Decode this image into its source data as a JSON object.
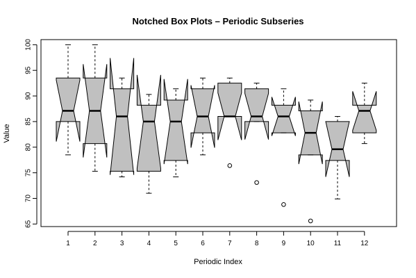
{
  "chart_data": {
    "type": "box",
    "title": "Notched Box Plots – Periodic Subseries",
    "xlabel": "Periodic Index",
    "ylabel": "Value",
    "categories": [
      "1",
      "2",
      "3",
      "4",
      "5",
      "6",
      "7",
      "8",
      "9",
      "10",
      "11",
      "12"
    ],
    "ylim": [
      64.5,
      101
    ],
    "yticks": [
      65,
      70,
      75,
      80,
      85,
      90,
      95,
      100
    ],
    "box_fill": "#c0c0c0",
    "boxes": [
      {
        "min": 78.5,
        "q1": 85.0,
        "median": 87.1,
        "q3": 93.5,
        "max": 100.0,
        "notch": [
          81.1,
          93.1
        ],
        "outliers": []
      },
      {
        "min": 75.3,
        "q1": 80.7,
        "median": 87.1,
        "q3": 93.5,
        "max": 100.0,
        "notch": [
          78.0,
          96.2
        ],
        "outliers": []
      },
      {
        "min": 74.2,
        "q1": 75.3,
        "median": 86.0,
        "q3": 91.4,
        "max": 93.5,
        "notch": [
          74.6,
          97.4
        ],
        "outliers": []
      },
      {
        "min": 71.0,
        "q1": 75.3,
        "median": 85.0,
        "q3": 88.2,
        "max": 90.3,
        "notch": [
          75.9,
          94.1
        ],
        "outliers": []
      },
      {
        "min": 74.2,
        "q1": 77.4,
        "median": 85.0,
        "q3": 89.2,
        "max": 91.4,
        "notch": [
          76.7,
          93.3
        ],
        "outliers": []
      },
      {
        "min": 78.5,
        "q1": 82.8,
        "median": 86.0,
        "q3": 91.4,
        "max": 93.5,
        "notch": [
          79.9,
          92.1
        ],
        "outliers": []
      },
      {
        "min": 86.0,
        "q1": 86.0,
        "median": 86.0,
        "q3": 92.5,
        "max": 93.5,
        "notch": [
          81.4,
          90.6
        ],
        "outliers": [
          76.4
        ]
      },
      {
        "min": 85.0,
        "q1": 85.0,
        "median": 86.0,
        "q3": 91.4,
        "max": 92.5,
        "notch": [
          81.5,
          90.5
        ],
        "outliers": [
          73.1
        ]
      },
      {
        "min": 82.8,
        "q1": 82.8,
        "median": 86.0,
        "q3": 88.2,
        "max": 91.4,
        "notch": [
          82.2,
          89.8
        ],
        "outliers": [
          68.8
        ]
      },
      {
        "min": 78.5,
        "q1": 78.5,
        "median": 82.8,
        "q3": 87.1,
        "max": 89.2,
        "notch": [
          76.7,
          88.9
        ],
        "outliers": [
          65.6
        ]
      },
      {
        "min": 69.9,
        "q1": 77.4,
        "median": 79.6,
        "q3": 85.0,
        "max": 86.0,
        "notch": [
          74.2,
          85.0
        ],
        "outliers": []
      },
      {
        "min": 80.7,
        "q1": 82.8,
        "median": 87.1,
        "q3": 88.2,
        "max": 92.5,
        "notch": [
          83.3,
          90.9
        ],
        "outliers": []
      }
    ]
  }
}
